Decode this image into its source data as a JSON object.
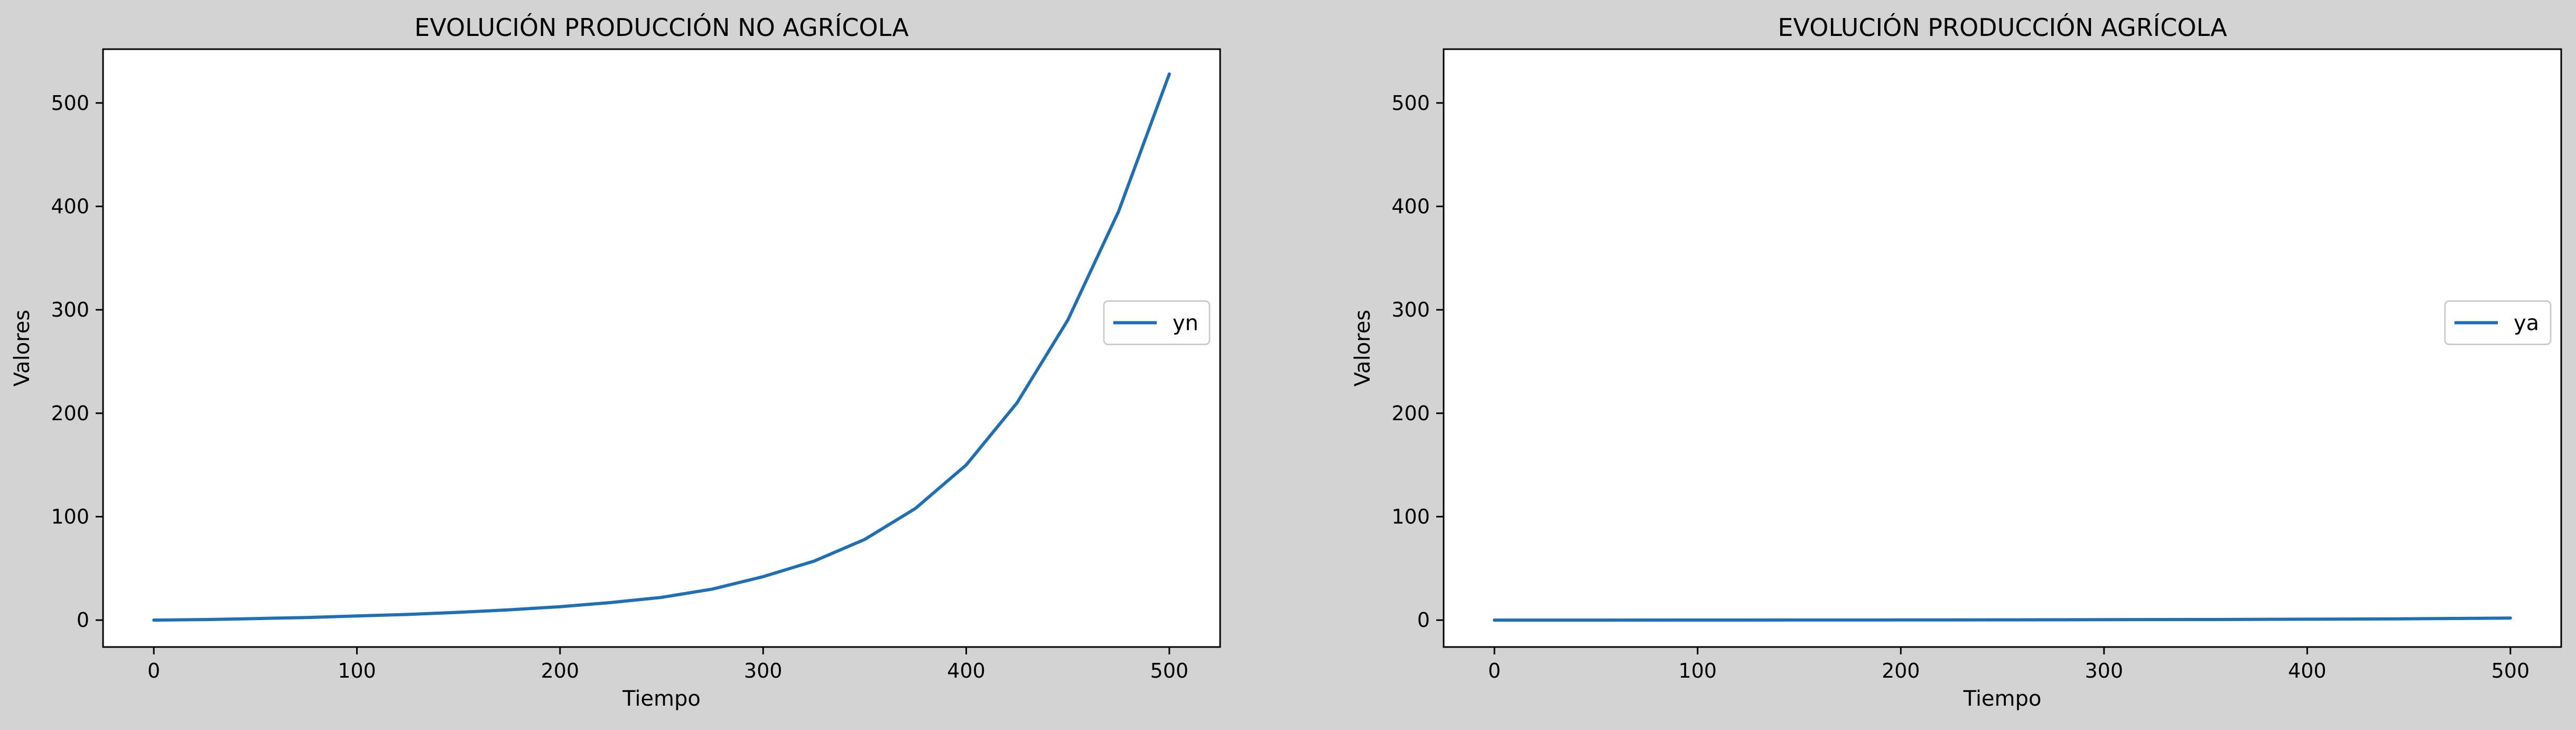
{
  "figure": {
    "background": "#d3d3d3"
  },
  "chart_data": [
    {
      "type": "line",
      "title": "EVOLUCIÓN PRODUCCIÓN NO AGRÍCOLA",
      "xlabel": "Tiempo",
      "ylabel": "Valores",
      "xlim": [
        -25,
        525
      ],
      "ylim": [
        -26,
        552
      ],
      "xticks": [
        0,
        100,
        200,
        300,
        400,
        500
      ],
      "yticks": [
        0,
        100,
        200,
        300,
        400,
        500
      ],
      "grid": false,
      "legend_position": "center-right",
      "series": [
        {
          "name": "yn",
          "color": "#1f6fb2",
          "x": [
            0,
            25,
            50,
            75,
            100,
            125,
            150,
            175,
            200,
            225,
            250,
            275,
            300,
            325,
            350,
            375,
            400,
            425,
            450,
            475,
            500
          ],
          "y": [
            0,
            0.5,
            1.5,
            2.5,
            4,
            5.5,
            7.5,
            10,
            13,
            17,
            22,
            30,
            42,
            57,
            78,
            108,
            150,
            210,
            290,
            395,
            528
          ]
        }
      ]
    },
    {
      "type": "line",
      "title": "EVOLUCIÓN PRODUCCIÓN AGRÍCOLA",
      "xlabel": "Tiempo",
      "ylabel": "Valores",
      "xlim": [
        -25,
        525
      ],
      "ylim": [
        -26,
        552
      ],
      "xticks": [
        0,
        100,
        200,
        300,
        400,
        500
      ],
      "yticks": [
        0,
        100,
        200,
        300,
        400,
        500
      ],
      "grid": false,
      "legend_position": "center-right",
      "series": [
        {
          "name": "ya",
          "color": "#1f6fb2",
          "x": [
            0,
            50,
            100,
            150,
            200,
            250,
            300,
            350,
            400,
            450,
            500
          ],
          "y": [
            0,
            0.02,
            0.05,
            0.1,
            0.15,
            0.25,
            0.4,
            0.6,
            0.9,
            1.3,
            2.0
          ]
        }
      ]
    }
  ]
}
